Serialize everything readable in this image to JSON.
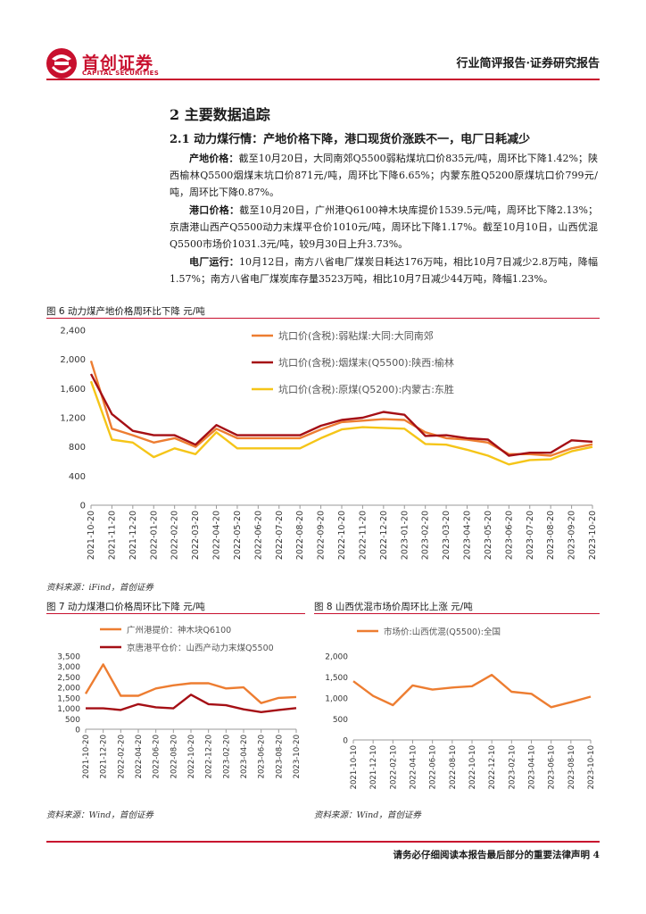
{
  "header": {
    "logo_cn": "首创证券",
    "logo_en": "CAPITAL SECURITIES",
    "report_type": "行业简评报告·证券研究报告"
  },
  "section": {
    "title": "2 主要数据追踪",
    "subtitle": "2.1 动力煤行情：产地价格下降，港口现货价涨跌不一，电厂日耗减少"
  },
  "paragraphs": [
    {
      "lead": "产地价格：",
      "text": "截至10月20日，大同南郊Q5500弱粘煤坑口价835元/吨，周环比下降1.42%；陕西榆林Q5500烟煤末坑口价871元/吨，周环比下降6.65%；内蒙东胜Q5200原煤坑口价799元/吨，周环比下降0.87%。"
    },
    {
      "lead": "港口价格：",
      "text": "截至10月20日，广州港Q6100神木块库提价1539.5元/吨，周环比下降2.13%；京唐港山西产Q5500动力末煤平仓价1010元/吨，周环比下降1.17%。截至10月10日，山西优混Q5500市场价1031.3元/吨，较9月30日上升3.73%。"
    },
    {
      "lead": "电厂运行：",
      "text": "10月12日，南方八省电厂煤炭日耗达176万吨，相比10月7日减少2.8万吨，降幅1.57%；南方八省电厂煤炭库存量3523万吨，相比10月7日减少44万吨，降幅1.23%。"
    }
  ],
  "figures": {
    "fig6": {
      "caption": "图 6 动力煤产地价格周环比下降  元/吨",
      "source": "资料来源：iFind，首创证券"
    },
    "fig7": {
      "caption": "图 7 动力煤港口价格周环比下降  元/吨",
      "source": "资料来源：Wind，首创证券"
    },
    "fig8": {
      "caption": "图 8 山西优混市场价周环比上涨  元/吨",
      "source": "资料来源：Wind，首创证券"
    }
  },
  "footer": {
    "text": "请务必仔细阅读本报告最后部分的重要法律声明 4"
  },
  "chart_data": [
    {
      "id": "fig6",
      "type": "line",
      "title": "动力煤产地价格周环比下降",
      "ylabel": "元/吨",
      "ylim": [
        0,
        2400
      ],
      "yticks": [
        0,
        400,
        800,
        1200,
        1600,
        2000,
        2400
      ],
      "x": [
        "2021-10-20",
        "2021-11-20",
        "2021-12-20",
        "2022-01-20",
        "2022-02-20",
        "2022-03-20",
        "2022-04-20",
        "2022-05-20",
        "2022-06-20",
        "2022-07-20",
        "2022-08-20",
        "2022-09-20",
        "2022-10-20",
        "2022-11-20",
        "2022-12-20",
        "2023-01-20",
        "2023-02-20",
        "2023-03-20",
        "2023-04-20",
        "2023-05-20",
        "2023-06-20",
        "2023-07-20",
        "2023-08-20",
        "2023-09-20",
        "2023-10-20"
      ],
      "series": [
        {
          "name": "坑口价(含税):弱粘煤:大同:大同南郊",
          "color": "#ed7d31",
          "values": [
            1980,
            1050,
            960,
            860,
            920,
            800,
            1050,
            920,
            920,
            920,
            920,
            1040,
            1140,
            1160,
            1180,
            1170,
            1000,
            920,
            900,
            860,
            700,
            700,
            680,
            780,
            835
          ]
        },
        {
          "name": "坑口价(含税):烟煤末(Q5500):陕西:榆林",
          "color": "#a50f15",
          "values": [
            1800,
            1250,
            1020,
            960,
            960,
            830,
            1100,
            960,
            960,
            960,
            960,
            1090,
            1170,
            1200,
            1280,
            1240,
            950,
            960,
            920,
            900,
            680,
            720,
            720,
            890,
            871
          ]
        },
        {
          "name": "坑口价(含税):原煤(Q5200):内蒙古:东胜",
          "color": "#f5c518",
          "values": [
            1700,
            900,
            860,
            660,
            780,
            700,
            1000,
            780,
            780,
            780,
            780,
            920,
            1040,
            1070,
            1060,
            1050,
            840,
            830,
            760,
            680,
            560,
            620,
            630,
            740,
            799
          ]
        }
      ]
    },
    {
      "id": "fig7",
      "type": "line",
      "title": "动力煤港口价格周环比下降",
      "ylabel": "元/吨",
      "ylim": [
        0,
        3500
      ],
      "yticks": [
        0,
        500,
        1000,
        1500,
        2000,
        2500,
        3000,
        3500
      ],
      "x": [
        "2021-10-20",
        "2021-12-20",
        "2022-02-20",
        "2022-04-20",
        "2022-06-20",
        "2022-08-20",
        "2022-10-20",
        "2022-12-20",
        "2023-02-20",
        "2023-04-20",
        "2023-06-20",
        "2023-08-20",
        "2023-10-20"
      ],
      "series": [
        {
          "name": "广州港提价：神木块Q6100",
          "color": "#ed7d31",
          "values": [
            1700,
            3100,
            1600,
            1600,
            1950,
            2100,
            2200,
            2200,
            1950,
            2000,
            1250,
            1500,
            1540
          ]
        },
        {
          "name": "京唐港平仓价：山西产动力末煤Q5500",
          "color": "#a50f15",
          "values": [
            1000,
            1000,
            920,
            1200,
            1050,
            1000,
            1650,
            1200,
            1150,
            950,
            820,
            920,
            1010
          ]
        }
      ]
    },
    {
      "id": "fig8",
      "type": "line",
      "title": "山西优混市场价周环比上涨",
      "ylabel": "元/吨",
      "ylim": [
        0,
        2000
      ],
      "yticks": [
        0,
        500,
        1000,
        1500,
        2000
      ],
      "x": [
        "2021-10-10",
        "2021-12-10",
        "2022-02-10",
        "2022-04-10",
        "2022-06-10",
        "2022-08-10",
        "2022-10-10",
        "2022-12-10",
        "2023-02-10",
        "2023-04-10",
        "2023-06-10",
        "2023-08-10",
        "2023-10-10"
      ],
      "series": [
        {
          "name": "市场价:山西优混(Q5500):全国",
          "color": "#ed7d31",
          "values": [
            1400,
            1050,
            830,
            1300,
            1200,
            1250,
            1280,
            1550,
            1150,
            1100,
            780,
            900,
            1031
          ]
        }
      ]
    }
  ]
}
